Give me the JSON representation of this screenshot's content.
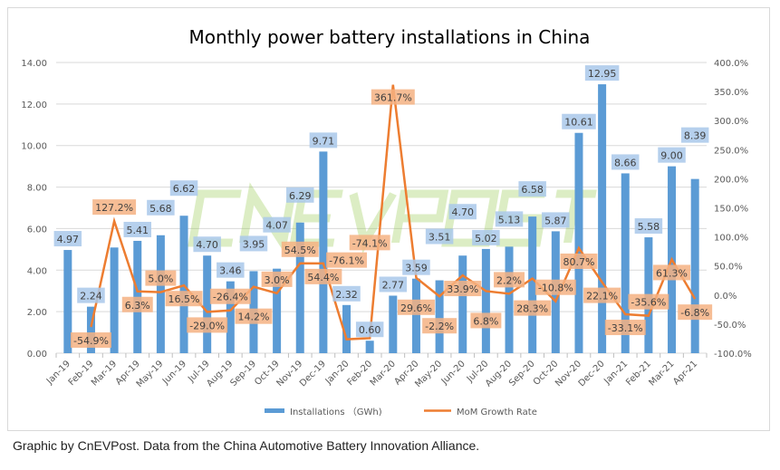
{
  "chart_data": {
    "type": "bar+line",
    "title": "Monthly power battery installations in China",
    "categories": [
      "Jan-19",
      "Feb-19",
      "Mar-19",
      "Apr-19",
      "May-19",
      "Jun-19",
      "Jul-19",
      "Aug-19",
      "Sep-19",
      "Oct-19",
      "Nov-19",
      "Dec-19",
      "Jan-20",
      "Feb-20",
      "Mar-20",
      "Apr-20",
      "May-20",
      "Jun-20",
      "Jul-20",
      "Aug-20",
      "Sep-20",
      "Oct-20",
      "Nov-20",
      "Dec-20",
      "Jan-21",
      "Feb-21",
      "Mar-21",
      "Apr-21"
    ],
    "series": [
      {
        "name": "Installations （GWh)",
        "type": "bar",
        "axis": "left",
        "color": "#5b9bd5",
        "values": [
          4.97,
          2.24,
          5.09,
          5.41,
          5.68,
          6.62,
          4.7,
          3.46,
          3.95,
          4.07,
          6.29,
          9.71,
          2.32,
          0.6,
          2.77,
          3.59,
          3.51,
          4.7,
          5.02,
          5.13,
          6.58,
          5.87,
          10.61,
          12.95,
          8.66,
          5.58,
          9.0,
          8.39
        ],
        "labels": [
          "4.97",
          "2.24",
          "",
          "5.41",
          "5.68",
          "6.62",
          "4.70",
          "3.46",
          "3.95",
          "4.07",
          "6.29",
          "9.71",
          "2.32",
          "0.60",
          "2.77",
          "3.59",
          "3.51",
          "4.70",
          "5.02",
          "5.13",
          "6.58",
          "5.87",
          "10.61",
          "12.95",
          "8.66",
          "5.58",
          "9.00",
          "8.39"
        ]
      },
      {
        "name": "MoM Growth Rate",
        "type": "line",
        "axis": "right",
        "color": "#ed7d31",
        "values": [
          null,
          -54.9,
          127.2,
          6.3,
          5.0,
          16.5,
          -29.0,
          -26.4,
          14.2,
          3.0,
          54.5,
          54.4,
          -76.1,
          -74.1,
          361.7,
          29.6,
          -2.2,
          33.9,
          6.8,
          2.2,
          28.3,
          -10.8,
          80.7,
          22.1,
          -33.1,
          -35.6,
          61.3,
          -6.8
        ]
      }
    ],
    "yleft": {
      "ylim": [
        0,
        14
      ],
      "ticks": [
        "0.00",
        "2.00",
        "4.00",
        "6.00",
        "8.00",
        "10.00",
        "12.00",
        "14.00"
      ]
    },
    "yright": {
      "ylim": [
        -100,
        400
      ],
      "ticks": [
        "-100.0%",
        "-50.0%",
        "0.0%",
        "50.0%",
        "100.0%",
        "150.0%",
        "200.0%",
        "250.0%",
        "300.0%",
        "350.0%",
        "400.0%"
      ]
    },
    "grid": true,
    "legend": "bottom",
    "watermark": "CnEVPost"
  },
  "caption": "Graphic by CnEVPost. Data from the China Automotive Battery Innovation Alliance."
}
